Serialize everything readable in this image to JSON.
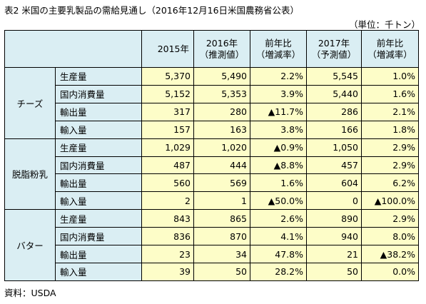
{
  "title": "表2 米国の主要乳製品の需給見通し（2016年12月16日米国農務省公表）",
  "unit": "（単位：千トン）",
  "headers": {
    "y2015": "2015年",
    "y2016": "2016年",
    "y2016_sub": "（推測値）",
    "yoy": "前年比",
    "yoy_sub": "（増減率）",
    "y2017": "2017年",
    "y2017_sub": "（予測値）"
  },
  "groups": [
    {
      "name": "チーズ",
      "rows": [
        {
          "item": "生産量",
          "v2015": "5,370",
          "v2016": "5,490",
          "yoy2016": "2.2%",
          "v2017": "5,545",
          "yoy2017": "1.0%"
        },
        {
          "item": "国内消費量",
          "v2015": "5,152",
          "v2016": "5,353",
          "yoy2016": "3.9%",
          "v2017": "5,440",
          "yoy2017": "1.6%"
        },
        {
          "item": "輸出量",
          "v2015": "317",
          "v2016": "280",
          "yoy2016": "▲11.7%",
          "v2017": "286",
          "yoy2017": "2.1%"
        },
        {
          "item": "輸入量",
          "v2015": "157",
          "v2016": "163",
          "yoy2016": "3.8%",
          "v2017": "166",
          "yoy2017": "1.8%"
        }
      ]
    },
    {
      "name": "脱脂粉乳",
      "rows": [
        {
          "item": "生産量",
          "v2015": "1,029",
          "v2016": "1,020",
          "yoy2016": "▲0.9%",
          "v2017": "1,050",
          "yoy2017": "2.9%"
        },
        {
          "item": "国内消費量",
          "v2015": "487",
          "v2016": "444",
          "yoy2016": "▲8.8%",
          "v2017": "457",
          "yoy2017": "2.9%"
        },
        {
          "item": "輸出量",
          "v2015": "560",
          "v2016": "569",
          "yoy2016": "1.6%",
          "v2017": "604",
          "yoy2017": "6.2%"
        },
        {
          "item": "輸入量",
          "v2015": "2",
          "v2016": "1",
          "yoy2016": "▲50.0%",
          "v2017": "0",
          "yoy2017": "▲100.0%"
        }
      ]
    },
    {
      "name": "バター",
      "rows": [
        {
          "item": "生産量",
          "v2015": "843",
          "v2016": "865",
          "yoy2016": "2.6%",
          "v2017": "890",
          "yoy2017": "2.9%"
        },
        {
          "item": "国内消費量",
          "v2015": "836",
          "v2016": "870",
          "yoy2016": "4.1%",
          "v2017": "940",
          "yoy2017": "8.0%"
        },
        {
          "item": "輸出量",
          "v2015": "23",
          "v2016": "34",
          "yoy2016": "47.8%",
          "v2017": "21",
          "yoy2017": "▲38.2%"
        },
        {
          "item": "輸入量",
          "v2015": "39",
          "v2016": "50",
          "yoy2016": "28.2%",
          "v2017": "50",
          "yoy2017": "0.0%"
        }
      ]
    }
  ],
  "source": "資料：USDA",
  "colors": {
    "header_bg": "#daeef3",
    "value_bg": "#fdfdc8",
    "border": "#000000"
  }
}
